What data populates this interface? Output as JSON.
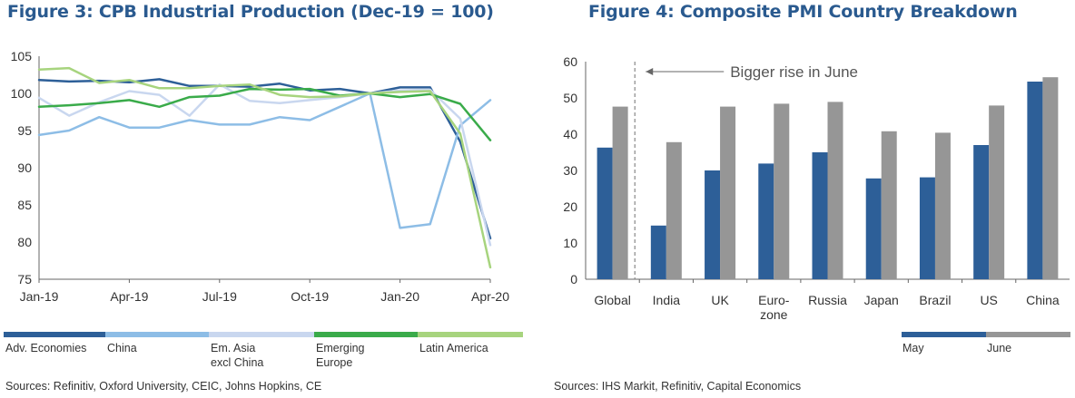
{
  "chart_data": [
    {
      "type": "line",
      "title": "Figure 3: CPB Industrial Production (Dec-19 = 100)",
      "x_tick_labels": [
        "Jan-19",
        "Apr-19",
        "Jul-19",
        "Oct-19",
        "Jan-20",
        "Apr-20"
      ],
      "x": [
        "Jan-19",
        "Feb-19",
        "Mar-19",
        "Apr-19",
        "May-19",
        "Jun-19",
        "Jul-19",
        "Aug-19",
        "Sep-19",
        "Oct-19",
        "Nov-19",
        "Dec-19",
        "Jan-20",
        "Feb-20",
        "Mar-20",
        "Apr-20"
      ],
      "ylim": [
        75,
        105
      ],
      "y_ticks": [
        75,
        80,
        85,
        90,
        95,
        100,
        105
      ],
      "grid": false,
      "legend_position": "bottom",
      "series": [
        {
          "name": "Adv. Economies",
          "color": "#2d5f98",
          "values": [
            101.8,
            101.6,
            101.7,
            101.5,
            101.9,
            101.0,
            101.0,
            100.9,
            101.3,
            100.4,
            100.6,
            100.0,
            100.8,
            100.8,
            93.5,
            80.5
          ]
        },
        {
          "name": "China",
          "color": "#8dbde6",
          "values": [
            94.4,
            95.0,
            96.8,
            95.4,
            95.4,
            96.4,
            95.8,
            95.8,
            96.8,
            96.4,
            98.2,
            100.0,
            81.9,
            82.4,
            95.7,
            99.1
          ]
        },
        {
          "name": "Em. Asia\nexcl China",
          "color": "#c9d7ef",
          "values": [
            99.4,
            97.0,
            98.8,
            100.3,
            99.8,
            97.0,
            101.2,
            99.0,
            98.7,
            99.1,
            99.5,
            100.0,
            100.4,
            100.5,
            96.6,
            79.6
          ]
        },
        {
          "name": "Emerging\nEurope",
          "color": "#3aab4a",
          "values": [
            98.2,
            98.4,
            98.7,
            99.1,
            98.2,
            99.5,
            99.7,
            100.6,
            100.5,
            100.6,
            99.7,
            100.0,
            99.5,
            99.9,
            98.6,
            93.7
          ]
        },
        {
          "name": "Latin America",
          "color": "#a7d47e",
          "values": [
            103.2,
            103.4,
            101.4,
            101.8,
            100.7,
            100.7,
            101.0,
            101.2,
            99.8,
            99.5,
            99.6,
            100.0,
            100.2,
            100.3,
            94.6,
            76.6
          ]
        }
      ]
    },
    {
      "type": "bar",
      "title": "Figure 4: Composite PMI Country Breakdown",
      "categories": [
        "Global",
        "India",
        "UK",
        "Euro-\nzone",
        "Russia",
        "Japan",
        "Brazil",
        "US",
        "China"
      ],
      "ylim": [
        0,
        60
      ],
      "y_ticks": [
        0,
        10,
        20,
        30,
        40,
        50,
        60
      ],
      "grid": false,
      "legend_position": "bottom-right",
      "annotation": "Bigger rise in June",
      "series": [
        {
          "name": "May",
          "color": "#2d5f98",
          "values": [
            36.3,
            14.8,
            30.0,
            31.9,
            35.0,
            27.8,
            28.1,
            37.0,
            54.5
          ]
        },
        {
          "name": "June",
          "color": "#969696",
          "values": [
            47.6,
            37.8,
            47.6,
            48.4,
            48.9,
            40.8,
            40.4,
            47.9,
            55.7
          ]
        }
      ]
    }
  ],
  "sources": {
    "fig3": "Sources: Refinitiv, Oxford University, CEIC, Johns Hopkins, CE",
    "fig4": "Sources: IHS Markit, Refinitiv, Capital Economics"
  }
}
